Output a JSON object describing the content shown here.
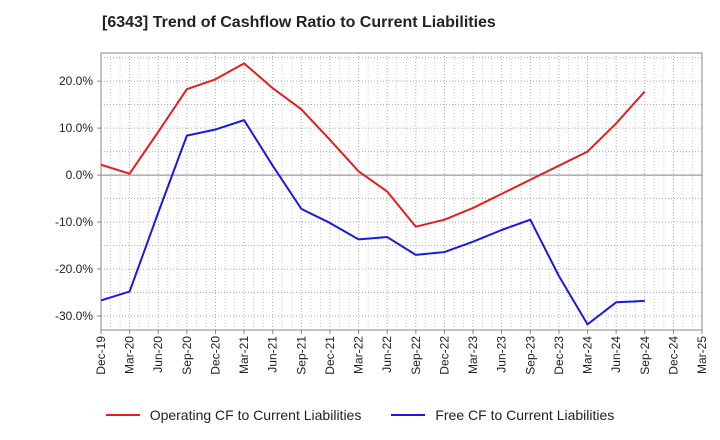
{
  "chart_data": {
    "type": "line",
    "title": "[6343]  Trend of Cashflow Ratio to Current Liabilities",
    "categories": [
      "Dec-19",
      "Mar-20",
      "Jun-20",
      "Sep-20",
      "Dec-20",
      "Mar-21",
      "Jun-21",
      "Sep-21",
      "Dec-21",
      "Mar-22",
      "Jun-22",
      "Sep-22",
      "Dec-22",
      "Mar-23",
      "Jun-23",
      "Sep-23",
      "Dec-23",
      "Mar-24",
      "Jun-24",
      "Sep-24",
      "Dec-24",
      "Mar-25"
    ],
    "yticks": [
      "20.0%",
      "10.0%",
      "0.0%",
      "-10.0%",
      "-20.0%",
      "-30.0%"
    ],
    "ytick_values": [
      20,
      10,
      0,
      -10,
      -20,
      -30
    ],
    "ylim": [
      -33,
      26
    ],
    "grid": true,
    "legend_position": "bottom",
    "series": [
      {
        "name": "Operating CF to Current Liabilities",
        "color": "#e02020",
        "values": [
          2.2,
          0.3,
          9.2,
          18.3,
          20.4,
          23.8,
          18.5,
          14.0,
          7.5,
          0.8,
          -3.5,
          -11.0,
          -9.5,
          -7.0,
          -4.0,
          -1.0,
          2.0,
          5.0,
          11.0,
          17.8,
          null,
          null
        ]
      },
      {
        "name": "Free CF to Current Liabilities",
        "color": "#1a1adc",
        "values": [
          -26.7,
          -24.8,
          -8.0,
          8.4,
          9.7,
          11.7,
          2.0,
          -7.2,
          -10.2,
          -13.7,
          -13.2,
          -17.0,
          -16.4,
          -14.2,
          -11.7,
          -9.5,
          -21.5,
          -31.8,
          -27.1,
          -26.8,
          null,
          null
        ]
      }
    ]
  }
}
